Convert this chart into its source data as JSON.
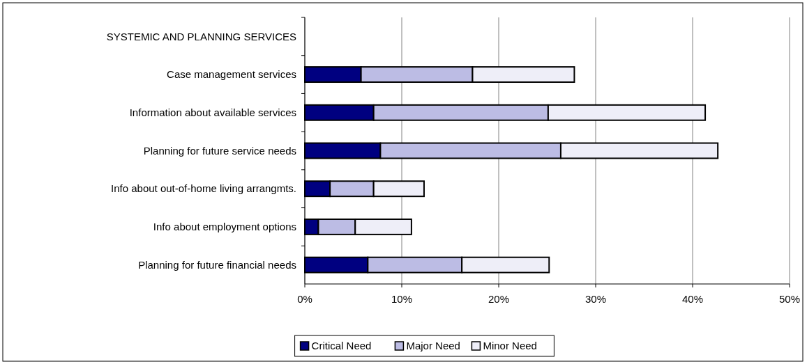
{
  "chart_data": {
    "type": "bar",
    "orientation": "horizontal",
    "stacked": true,
    "categories": [
      "SYSTEMIC AND PLANNING SERVICES",
      "Case management services",
      "Information about available services",
      "Planning for future service needs",
      "Info about out-of-home living arrangmts.",
      "Info about employment options",
      "Planning for future financial needs"
    ],
    "series": [
      {
        "name": "Critical Need",
        "color": "#000080",
        "values": [
          null,
          5.8,
          7.1,
          7.8,
          2.6,
          1.4,
          6.5
        ]
      },
      {
        "name": "Major Need",
        "color": "#bcbce4",
        "values": [
          null,
          11.5,
          18.0,
          18.6,
          4.5,
          3.8,
          9.7
        ]
      },
      {
        "name": "Minor Need",
        "color": "#eeeef8",
        "values": [
          null,
          10.5,
          16.2,
          16.2,
          5.2,
          5.8,
          9.0
        ]
      }
    ],
    "xlim": [
      0,
      50
    ],
    "xticks": [
      {
        "value": 0,
        "label": "0%"
      },
      {
        "value": 10,
        "label": "10%"
      },
      {
        "value": 20,
        "label": "20%"
      },
      {
        "value": 30,
        "label": "30%"
      },
      {
        "value": 40,
        "label": "40%"
      },
      {
        "value": 50,
        "label": "50%"
      }
    ],
    "grid": "x",
    "legend": "bottom"
  }
}
